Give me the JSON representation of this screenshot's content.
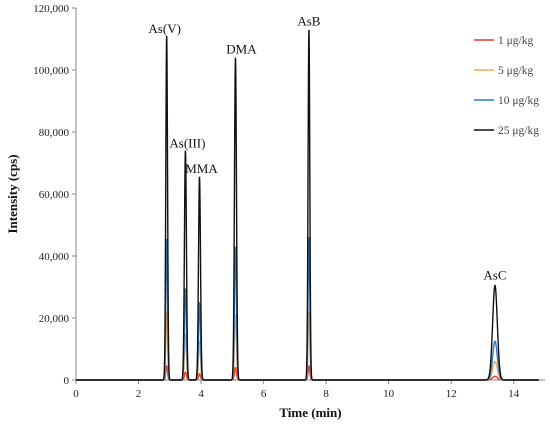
{
  "chart_data": {
    "type": "line",
    "title": "",
    "xlabel": "Time (min)",
    "ylabel": "Intensity (cps)",
    "xlim": [
      0,
      15
    ],
    "ylim": [
      0,
      120000
    ],
    "x_ticks": [
      0,
      2,
      4,
      6,
      8,
      10,
      12,
      14
    ],
    "x_tick_labels": [
      "0",
      "2",
      "4",
      "6",
      "8",
      "10",
      "12",
      "14"
    ],
    "y_ticks": [
      0,
      20000,
      40000,
      60000,
      80000,
      100000,
      120000
    ],
    "y_tick_labels": [
      "0",
      "20,000",
      "40,000",
      "60,000",
      "80,000",
      "100,000",
      "120,000"
    ],
    "grid": false,
    "legend_position": "top-right",
    "peaks": [
      {
        "label": "As(V)",
        "retention_time": 2.9
      },
      {
        "label": "As(III)",
        "retention_time": 3.5
      },
      {
        "label": "MMA",
        "retention_time": 3.95
      },
      {
        "label": "DMA",
        "retention_time": 5.1
      },
      {
        "label": "AsB",
        "retention_time": 7.45
      },
      {
        "label": "AsC",
        "retention_time": 13.4
      }
    ],
    "series": [
      {
        "name": "1 μg/kg",
        "color": "#e03a2f",
        "peak_heights": [
          4500,
          2500,
          2000,
          4000,
          4500,
          1200
        ]
      },
      {
        "name": "5 μg/kg",
        "color": "#f2a65a",
        "peak_heights": [
          22000,
          14500,
          12500,
          21000,
          22000,
          6000
        ]
      },
      {
        "name": "10 μg/kg",
        "color": "#2e7bbf",
        "peak_heights": [
          45500,
          29500,
          25000,
          43000,
          46000,
          12500
        ]
      },
      {
        "name": "25 μg/kg",
        "color": "#111111",
        "peak_heights": [
          111000,
          74000,
          65500,
          104000,
          113000,
          30500
        ]
      }
    ]
  }
}
